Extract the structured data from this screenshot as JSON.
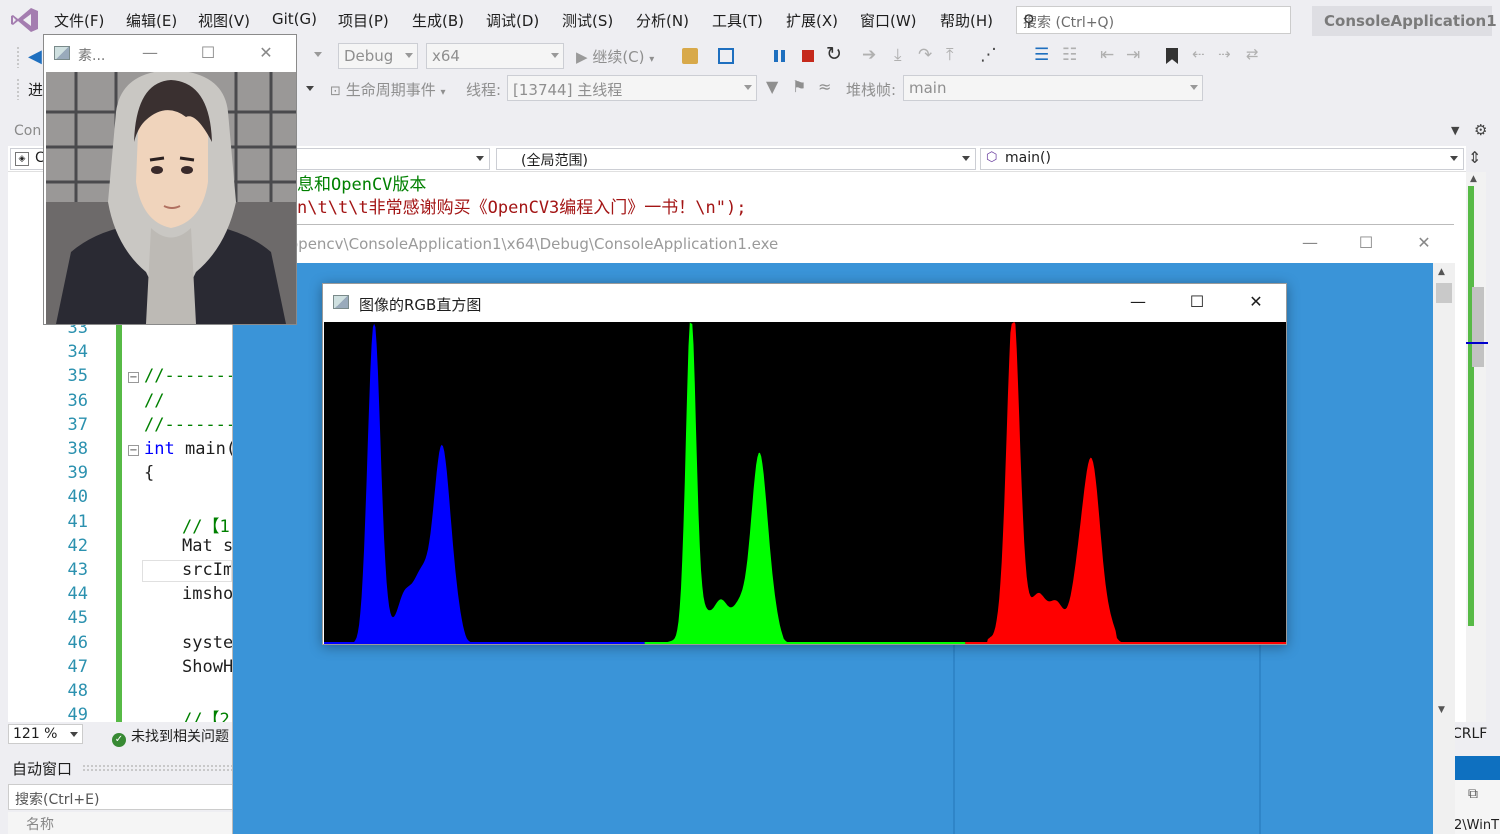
{
  "menubar": {
    "items": [
      "文件(F)",
      "编辑(E)",
      "视图(V)",
      "Git(G)",
      "项目(P)",
      "生成(B)",
      "调试(D)",
      "测试(S)",
      "分析(N)",
      "工具(T)",
      "扩展(X)",
      "窗口(W)",
      "帮助(H)"
    ],
    "search_placeholder": "搜索 (Ctrl+Q)",
    "solution_title": "ConsoleApplication1"
  },
  "toolbar1": {
    "config": "Debug",
    "platform": "x64",
    "continue_label": "继续(C)"
  },
  "toolbar2": {
    "process_label": "进",
    "lifecycle_label": "生命周期事件",
    "thread_label": "线程:",
    "thread_value": "[13744] 主线程",
    "stackframe_label": "堆栈帧:",
    "stackframe_value": "main"
  },
  "editor": {
    "doc_tab": "Con",
    "nav_project": "C",
    "nav_scope": "(全局范围)",
    "nav_member": "main()",
    "top_lines": [
      {
        "text": "息和OpenCV版本",
        "cls": "c-green"
      },
      {
        "text": "n\\t\\t\\t非常感谢购买《OpenCV3编程入门》一书！\\n\");",
        "cls": "c-red"
      }
    ],
    "line_numbers": [
      "33",
      "34",
      "35",
      "36",
      "37",
      "38",
      "39",
      "40",
      "41",
      "42",
      "43",
      "44",
      "45",
      "46",
      "47",
      "48",
      "49"
    ],
    "code_lines": [
      {
        "n": 35,
        "text": "//-------",
        "cls": "c-green",
        "indent": 0
      },
      {
        "n": 36,
        "text": "//",
        "cls": "c-green",
        "indent": 0
      },
      {
        "n": 37,
        "text": "//-------",
        "cls": "c-green",
        "indent": 0
      },
      {
        "n": 38,
        "text": "int main(",
        "cls": "c-dark",
        "kw": "int",
        "indent": 0
      },
      {
        "n": 39,
        "text": "{",
        "cls": "c-dark",
        "indent": 0
      },
      {
        "n": 41,
        "text": "//【1",
        "cls": "c-green",
        "indent": 1
      },
      {
        "n": 42,
        "text": "Mat s",
        "cls": "c-dark",
        "indent": 1
      },
      {
        "n": 43,
        "text": "srcIm",
        "cls": "c-dark",
        "indent": 1
      },
      {
        "n": 44,
        "text": "imshow",
        "cls": "c-dark",
        "indent": 1
      },
      {
        "n": 46,
        "text": "syste",
        "cls": "c-dark",
        "indent": 1
      },
      {
        "n": 47,
        "text": "ShowH",
        "cls": "c-dark",
        "indent": 1
      },
      {
        "n": 49,
        "text": "//【2",
        "cls": "c-green",
        "indent": 1
      }
    ],
    "zoom": "121 %",
    "issues": "未找到相关问题",
    "line_ending": "CRLF"
  },
  "autos": {
    "title": "自动窗口",
    "search_placeholder": "搜索(Ctrl+E)",
    "col_name": "名称"
  },
  "console": {
    "title": "opencv\\ConsoleApplication1\\x64\\Debug\\ConsoleApplication1.exe",
    "bg_color": "#3a94d8"
  },
  "source_window": {
    "title": "素..."
  },
  "histogram_window": {
    "title": "图像的RGB直方图"
  },
  "chart_data": {
    "type": "area",
    "bins": 256,
    "ylim": [
      0,
      1
    ],
    "series": [
      {
        "color": "#0000ff",
        "peaks": [
          {
            "x": 40,
            "y": 1.0,
            "w": 5
          },
          {
            "x": 95,
            "y": 0.53,
            "w": 7
          },
          {
            "x": 75,
            "y": 0.2,
            "w": 14
          }
        ]
      },
      {
        "color": "#00ff00",
        "peaks": [
          {
            "x": 37,
            "y": 1.0,
            "w": 4
          },
          {
            "x": 92,
            "y": 0.55,
            "w": 7
          },
          {
            "x": 62,
            "y": 0.12,
            "w": 18
          }
        ]
      },
      {
        "color": "#ff0000",
        "peaks": [
          {
            "x": 38,
            "y": 0.98,
            "w": 5
          },
          {
            "x": 100,
            "y": 0.55,
            "w": 8
          },
          {
            "x": 60,
            "y": 0.14,
            "w": 20
          }
        ]
      }
    ]
  }
}
